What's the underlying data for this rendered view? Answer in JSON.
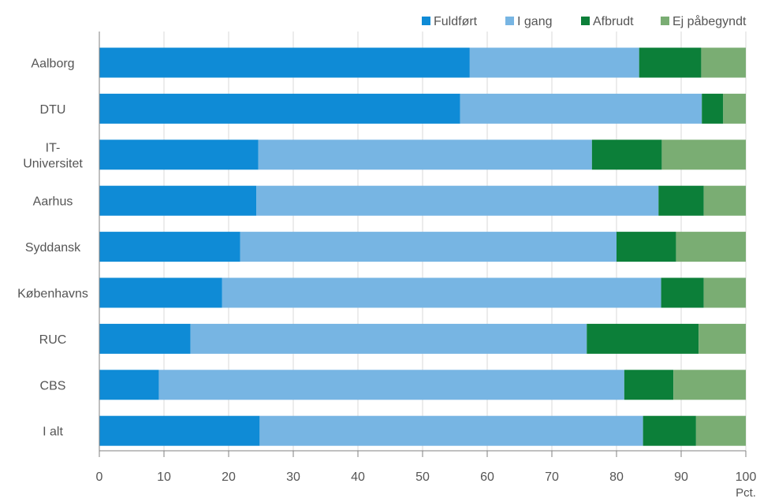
{
  "chart_data": {
    "type": "bar",
    "orientation": "horizontal",
    "stacked": true,
    "categories": [
      "Aalborg",
      "DTU",
      "IT-Universitet",
      "Aarhus",
      "Syddansk",
      "Københavns",
      "RUC",
      "CBS",
      "I alt"
    ],
    "category_lines": [
      [
        "Aalborg"
      ],
      [
        "DTU"
      ],
      [
        "IT-",
        "Universitet"
      ],
      [
        "Aarhus"
      ],
      [
        "Syddansk"
      ],
      [
        "Københavns"
      ],
      [
        "RUC"
      ],
      [
        "CBS"
      ],
      [
        "I alt"
      ]
    ],
    "series": [
      {
        "name": "Fuldført",
        "color": "#0f8bd6",
        "values": [
          57.3,
          55.8,
          24.6,
          24.3,
          21.8,
          19.0,
          14.1,
          9.2,
          24.8
        ]
      },
      {
        "name": "I gang",
        "color": "#77b5e3",
        "values": [
          26.2,
          37.4,
          51.6,
          62.2,
          58.2,
          67.9,
          61.3,
          72.0,
          59.3
        ]
      },
      {
        "name": "Afbrudt",
        "color": "#0c7f39",
        "values": [
          9.6,
          3.3,
          10.8,
          7.0,
          9.2,
          6.6,
          17.3,
          7.6,
          8.2
        ]
      },
      {
        "name": "Ej påbegyndt",
        "color": "#7aad73",
        "values": [
          6.9,
          3.5,
          13.0,
          6.5,
          10.8,
          6.5,
          7.3,
          11.2,
          7.7
        ]
      }
    ],
    "xlim": [
      0,
      100
    ],
    "xticks": [
      0,
      10,
      20,
      30,
      40,
      50,
      60,
      70,
      80,
      90,
      100
    ],
    "xlabel": "Pct.",
    "grid": "vertical",
    "legend_position": "top-right"
  }
}
